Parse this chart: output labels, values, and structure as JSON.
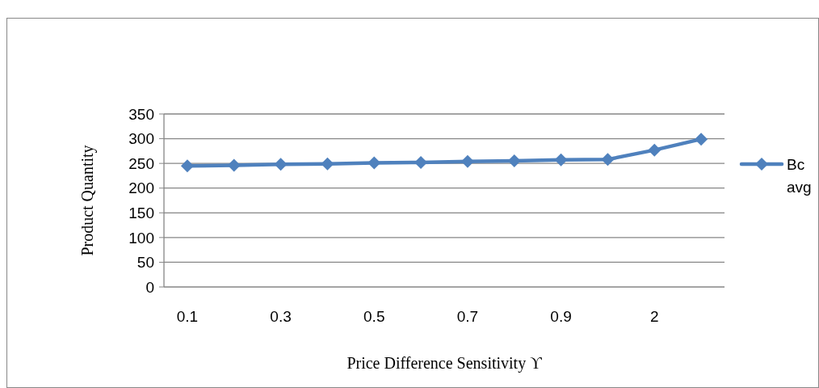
{
  "chart_data": {
    "type": "line",
    "xlabel": "Price Difference Sensitivity ϒ",
    "ylabel": "Product Quantity",
    "categories": [
      "0.1",
      null,
      "0.3",
      null,
      "0.5",
      null,
      "0.7",
      null,
      "0.9",
      null,
      "2",
      null
    ],
    "series": [
      {
        "name": "Bc avg",
        "color": "#4f81bd",
        "values": [
          245,
          246,
          248,
          249,
          251,
          252,
          254,
          255,
          257,
          258,
          277,
          299
        ]
      }
    ],
    "ylim": [
      0,
      350
    ],
    "yticks": [
      0,
      50,
      100,
      150,
      200,
      250,
      300,
      350
    ],
    "grid": "y",
    "legend": "right",
    "marker": "diamond",
    "line_style": "solid"
  }
}
